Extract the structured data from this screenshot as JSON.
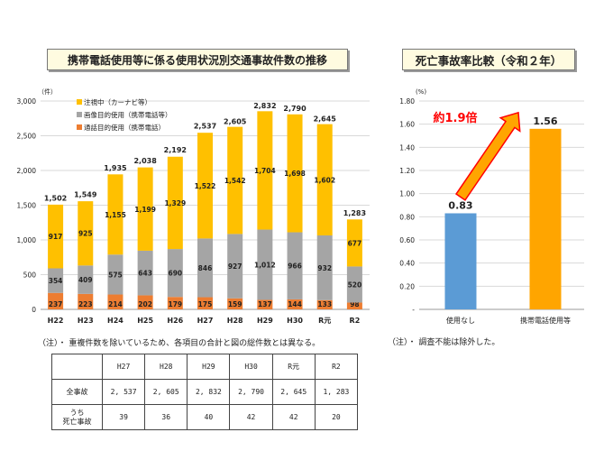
{
  "left_title": "携帯電話使用等に係る使用状況別交通事故件数の推移",
  "right_title": "死亡事故率比較（令和２年）",
  "left_note": "（注）・ 重複件数を除いているため、各項目の合計と図の総件数とは異なる。",
  "right_note": "（注）・ 調査不能は除外した。",
  "colors": {
    "call": "#ed7d31",
    "screen": "#a5a5a5",
    "watching": "#ffc000",
    "none_bar": "#5b9bd5",
    "phone_bar": "#ffa500",
    "arrow_red": "#ff0000"
  },
  "chart_data": [
    {
      "type": "bar",
      "stacked": true,
      "unit_label": "（件）",
      "categories": [
        "H22",
        "H23",
        "H24",
        "H25",
        "H26",
        "H27",
        "H28",
        "H29",
        "H30",
        "R元",
        "R2"
      ],
      "ylim": [
        0,
        3000
      ],
      "yticks": [
        "0",
        "500",
        "1,000",
        "1,500",
        "2,000",
        "2,500",
        "3,000"
      ],
      "grid": true,
      "legend_position": "top-left",
      "series": [
        {
          "name": "通話目的使用（携帯電話）",
          "values": [
            237,
            223,
            214,
            202,
            179,
            175,
            159,
            137,
            144,
            133,
            98
          ],
          "labels": [
            "237",
            "223",
            "214",
            "202",
            "179",
            "175",
            "159",
            "137",
            "144",
            "133",
            "98"
          ]
        },
        {
          "name": "画像目的使用（携帯電話等）",
          "values": [
            354,
            409,
            575,
            643,
            690,
            846,
            927,
            1012,
            966,
            932,
            520
          ],
          "labels": [
            "354",
            "409",
            "575",
            "643",
            "690",
            "846",
            "927",
            "1,012",
            "966",
            "932",
            "520"
          ]
        },
        {
          "name": "注視中（カーナビ等）",
          "values": [
            917,
            925,
            1155,
            1199,
            1329,
            1522,
            1542,
            1704,
            1698,
            1602,
            677
          ],
          "labels": [
            "917",
            "925",
            "1,155",
            "1,199",
            "1,329",
            "1,522",
            "1,542",
            "1,704",
            "1,698",
            "1,602",
            "677"
          ]
        }
      ],
      "totals": [
        1502,
        1549,
        1935,
        2038,
        2192,
        2537,
        2605,
        2832,
        2790,
        2645,
        1283
      ],
      "total_labels": [
        "1,502",
        "1,549",
        "1,935",
        "2,038",
        "2,192",
        "2,537",
        "2,605",
        "2,832",
        "2,790",
        "2,645",
        "1,283"
      ]
    },
    {
      "type": "bar",
      "unit_label": "(%)",
      "categories": [
        "使用なし",
        "携帯電話使用等"
      ],
      "values": [
        0.83,
        1.56
      ],
      "value_labels": [
        "0.83",
        "1.56"
      ],
      "ylim": [
        0,
        1.8
      ],
      "yticks": [
        "-",
        "0.20",
        "0.40",
        "0.60",
        "0.80",
        "1.00",
        "1.20",
        "1.40",
        "1.60",
        "1.80"
      ],
      "grid": true,
      "annotation": "約1.9倍"
    }
  ],
  "table": {
    "headers": [
      "H27",
      "H28",
      "H29",
      "H30",
      "R元",
      "R2"
    ],
    "rows": [
      {
        "label": "全事故",
        "label2": "",
        "values": [
          "2, 537",
          "2, 605",
          "2, 832",
          "2, 790",
          "2, 645",
          "1, 283"
        ]
      },
      {
        "label": "うち",
        "label2": "死亡事故",
        "values": [
          "39",
          "36",
          "40",
          "42",
          "42",
          "20"
        ]
      }
    ]
  }
}
